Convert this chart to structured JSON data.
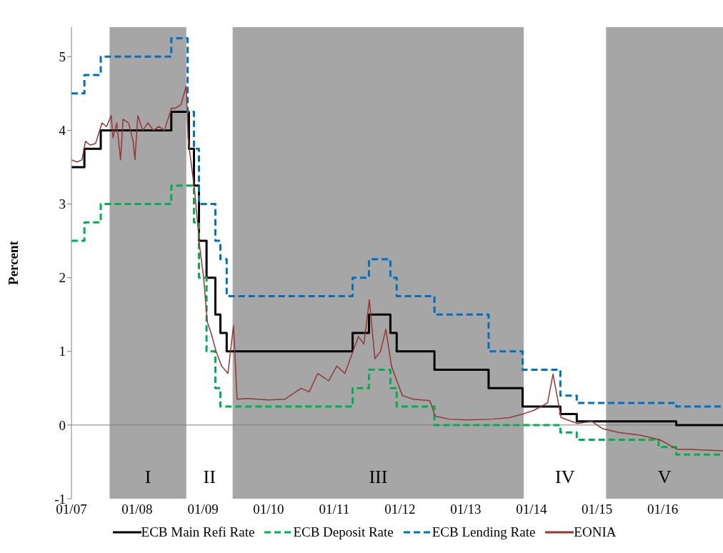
{
  "chart_data": {
    "type": "line",
    "ylabel": "Percent",
    "xlim": [
      "2007-01-01",
      "2016-12-01"
    ],
    "ylim": [
      -1,
      5.4
    ],
    "yticks": [
      -1,
      0,
      1,
      2,
      3,
      4,
      5
    ],
    "xticks": [
      {
        "value": "2007-01-01",
        "label": "01/07"
      },
      {
        "value": "2008-01-01",
        "label": "01/08"
      },
      {
        "value": "2009-01-01",
        "label": "01/09"
      },
      {
        "value": "2010-01-01",
        "label": "01/10"
      },
      {
        "value": "2011-01-01",
        "label": "01/11"
      },
      {
        "value": "2012-01-01",
        "label": "01/12"
      },
      {
        "value": "2013-01-01",
        "label": "01/13"
      },
      {
        "value": "2014-01-01",
        "label": "01/14"
      },
      {
        "value": "2015-01-01",
        "label": "01/15"
      },
      {
        "value": "2016-01-01",
        "label": "01/16"
      }
    ],
    "grid": false,
    "legend": "bottom",
    "marker": "none",
    "ref_lines": [
      {
        "axis": "y",
        "value": 0,
        "color": "#808080"
      }
    ],
    "bands": [
      {
        "axis": "x",
        "from": "2007-08-01",
        "to": "2008-10-01",
        "label": "I",
        "color": "#a6a6a6"
      },
      {
        "axis": "x",
        "from": "2008-10-01",
        "to": "2009-06-15",
        "label": "II",
        "color": "#ffffff"
      },
      {
        "axis": "x",
        "from": "2009-06-15",
        "to": "2013-11-20",
        "label": "III",
        "color": "#a6a6a6"
      },
      {
        "axis": "x",
        "from": "2013-11-20",
        "to": "2015-02-20",
        "label": "IV",
        "color": "#ffffff"
      },
      {
        "axis": "x",
        "from": "2015-02-20",
        "to": "2016-12-01",
        "label": "V",
        "color": "#a6a6a6"
      }
    ],
    "series": [
      {
        "name": "ECB Main Refi Rate",
        "type": "step",
        "color": "#000000",
        "line_style": "solid",
        "x": [
          "2007-01-01",
          "2007-03-14",
          "2007-06-13",
          "2008-07-09",
          "2008-10-15",
          "2008-11-12",
          "2008-12-10",
          "2009-01-21",
          "2009-03-11",
          "2009-04-08",
          "2009-05-13",
          "2011-04-13",
          "2011-07-13",
          "2011-11-09",
          "2011-12-14",
          "2012-07-11",
          "2013-05-08",
          "2013-11-13",
          "2014-06-11",
          "2014-09-10",
          "2016-03-16",
          "2016-12-01"
        ],
        "values": [
          3.5,
          3.75,
          4,
          4.25,
          3.75,
          3.25,
          2.5,
          2,
          1.5,
          1.25,
          1,
          1.25,
          1.5,
          1.25,
          1,
          0.75,
          0.5,
          0.25,
          0.15,
          0.05,
          0,
          0
        ]
      },
      {
        "name": "ECB Deposit Rate",
        "type": "step",
        "color": "#00b050",
        "line_style": "dashed",
        "x": [
          "2007-01-01",
          "2007-03-14",
          "2007-06-13",
          "2008-07-09",
          "2008-10-15",
          "2008-11-12",
          "2008-12-10",
          "2009-01-21",
          "2009-03-11",
          "2009-04-08",
          "2011-04-13",
          "2011-07-13",
          "2011-11-09",
          "2011-12-14",
          "2012-07-11",
          "2014-06-11",
          "2014-09-10",
          "2015-12-09",
          "2016-03-16",
          "2016-12-01"
        ],
        "values": [
          2.5,
          2.75,
          3,
          3.25,
          3.25,
          2.75,
          2,
          1,
          0.5,
          0.25,
          0.5,
          0.75,
          0.5,
          0.25,
          0,
          -0.1,
          -0.2,
          -0.3,
          -0.4,
          -0.4
        ]
      },
      {
        "name": "ECB Lending Rate",
        "type": "step",
        "color": "#0070c0",
        "line_style": "dashed",
        "x": [
          "2007-01-01",
          "2007-03-14",
          "2007-06-13",
          "2008-07-09",
          "2008-10-08",
          "2008-11-12",
          "2008-12-10",
          "2009-03-11",
          "2009-04-08",
          "2009-05-13",
          "2011-04-13",
          "2011-07-13",
          "2011-11-09",
          "2011-12-14",
          "2012-07-11",
          "2013-05-08",
          "2013-11-13",
          "2014-06-11",
          "2014-09-10",
          "2016-03-16",
          "2016-12-01"
        ],
        "values": [
          4.5,
          4.75,
          5,
          5.25,
          4.25,
          3.75,
          3,
          2.5,
          2.25,
          1.75,
          2,
          2.25,
          2,
          1.75,
          1.5,
          1,
          0.75,
          0.4,
          0.3,
          0.25,
          0.25
        ]
      },
      {
        "name": "EONIA",
        "type": "line",
        "color": "#953735",
        "line_style": "solid",
        "x": [
          "2007-01-01",
          "2007-02-01",
          "2007-03-01",
          "2007-03-20",
          "2007-04-15",
          "2007-05-15",
          "2007-06-20",
          "2007-07-15",
          "2007-08-10",
          "2007-08-20",
          "2007-09-10",
          "2007-10-01",
          "2007-10-15",
          "2007-11-15",
          "2007-12-10",
          "2007-12-20",
          "2008-01-05",
          "2008-02-01",
          "2008-03-01",
          "2008-04-01",
          "2008-05-01",
          "2008-06-01",
          "2008-07-10",
          "2008-08-01",
          "2008-09-01",
          "2008-09-30",
          "2008-10-10",
          "2008-10-20",
          "2008-11-15",
          "2008-12-15",
          "2009-01-05",
          "2009-01-25",
          "2009-02-15",
          "2009-03-15",
          "2009-04-15",
          "2009-05-20",
          "2009-06-20",
          "2009-07-10",
          "2009-09-01",
          "2010-01-01",
          "2010-04-01",
          "2010-07-01",
          "2010-08-15",
          "2010-10-01",
          "2010-12-01",
          "2011-01-15",
          "2011-03-01",
          "2011-04-15",
          "2011-05-15",
          "2011-06-15",
          "2011-07-15",
          "2011-08-15",
          "2011-09-15",
          "2011-10-15",
          "2011-11-15",
          "2011-12-15",
          "2012-01-15",
          "2012-03-15",
          "2012-06-15",
          "2012-07-15",
          "2012-10-01",
          "2013-01-01",
          "2013-06-01",
          "2013-09-01",
          "2013-11-15",
          "2014-01-15",
          "2014-04-01",
          "2014-05-01",
          "2014-06-15",
          "2014-09-15",
          "2014-12-01",
          "2015-02-01",
          "2015-05-01",
          "2015-09-01",
          "2015-12-15",
          "2016-01-15",
          "2016-03-20",
          "2016-06-01",
          "2016-12-01"
        ],
        "values": [
          3.6,
          3.57,
          3.6,
          3.85,
          3.8,
          3.82,
          4.1,
          4.05,
          4.2,
          3.9,
          4.1,
          3.6,
          4.15,
          4.1,
          3.85,
          3.6,
          4.2,
          4,
          4.1,
          4,
          4.05,
          4,
          4.3,
          4.3,
          4.35,
          4.6,
          3.9,
          3.7,
          3.2,
          2.4,
          2,
          1.4,
          1.25,
          1,
          0.8,
          0.7,
          1.35,
          0.35,
          0.36,
          0.34,
          0.35,
          0.5,
          0.45,
          0.7,
          0.6,
          0.8,
          0.7,
          1,
          1.2,
          1.1,
          1.7,
          0.9,
          1,
          1.3,
          0.8,
          0.6,
          0.4,
          0.35,
          0.33,
          0.12,
          0.08,
          0.07,
          0.08,
          0.1,
          0.15,
          0.2,
          0.3,
          0.69,
          0.1,
          0.02,
          0.05,
          -0.05,
          -0.1,
          -0.14,
          -0.2,
          -0.24,
          -0.33,
          -0.33,
          -0.35
        ]
      }
    ]
  }
}
